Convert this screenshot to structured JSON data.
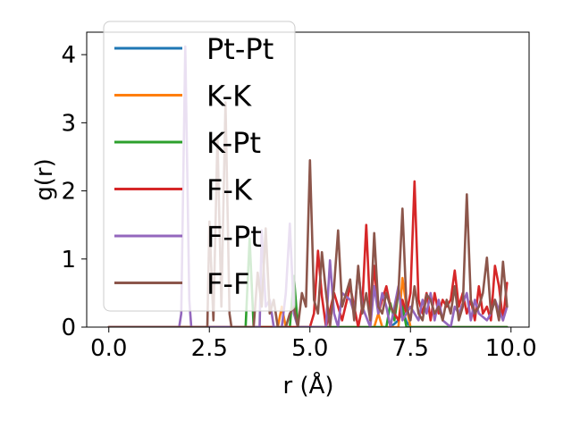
{
  "chart_data": {
    "type": "line",
    "xlabel": "r (Å)",
    "ylabel": "g(r)",
    "xlim": [
      -0.55,
      10.45
    ],
    "ylim": [
      0,
      4.33
    ],
    "xticks": [
      "0.0",
      "2.5",
      "5.0",
      "7.5",
      "10.0"
    ],
    "xtick_values": [
      0,
      2.5,
      5,
      7.5,
      10
    ],
    "yticks": [
      "0",
      "1",
      "2",
      "3",
      "4"
    ],
    "ytick_values": [
      0,
      1,
      2,
      3,
      4
    ],
    "legend_position": "upper left, overlapping plot",
    "grid": false,
    "series": [
      {
        "name": "Pt-Pt",
        "color": "#1f77b4",
        "x": [
          0,
          7.0,
          7.1,
          7.2,
          7.3,
          7.4,
          7.5,
          9.9
        ],
        "y": [
          0,
          0,
          0.05,
          0.1,
          0.25,
          0.08,
          0,
          0
        ]
      },
      {
        "name": "K-K",
        "color": "#ff7f0e",
        "x": [
          0,
          4.2,
          4.3,
          4.4,
          6.6,
          6.7,
          6.8,
          7.2,
          7.3,
          7.4,
          7.5,
          9.9
        ],
        "y": [
          0,
          0,
          0.3,
          0,
          0,
          0.2,
          0,
          0,
          0.72,
          0.3,
          0,
          0
        ]
      },
      {
        "name": "K-Pt",
        "color": "#2ca02c",
        "x": [
          0,
          3.4,
          3.5,
          3.6,
          4.5,
          4.6,
          4.7,
          6.9,
          7.0,
          7.1,
          7.2,
          7.3,
          7.4,
          7.5,
          9.9
        ],
        "y": [
          0,
          0,
          1.3,
          0,
          0,
          0.75,
          0,
          0,
          0.35,
          0.1,
          0.5,
          0.3,
          0,
          0,
          0
        ]
      },
      {
        "name": "F-K",
        "color": "#d62728",
        "x": [
          0,
          5.0,
          5.1,
          5.2,
          5.3,
          5.4,
          5.6,
          5.8,
          6.0,
          6.2,
          6.3,
          6.4,
          6.5,
          6.6,
          6.7,
          6.8,
          6.9,
          7.0,
          7.1,
          7.2,
          7.3,
          7.4,
          7.5,
          7.6,
          7.7,
          7.8,
          7.9,
          8.0,
          8.1,
          8.2,
          8.3,
          8.4,
          8.5,
          8.6,
          8.7,
          8.8,
          8.9,
          9.0,
          9.1,
          9.2,
          9.3,
          9.4,
          9.5,
          9.6,
          9.7,
          9.8,
          9.9
        ],
        "y": [
          0,
          0,
          0.2,
          1.12,
          0.45,
          0,
          0.5,
          0.1,
          0.6,
          0,
          0.3,
          1.5,
          0.2,
          0.9,
          0.2,
          0.4,
          0.6,
          0.3,
          0.2,
          0.1,
          0.4,
          0.2,
          0.5,
          2.14,
          0.4,
          0.2,
          0.5,
          0.1,
          0.5,
          0.2,
          0.4,
          0.3,
          0.4,
          0.83,
          0.3,
          0.5,
          0.2,
          0.4,
          0.1,
          0.6,
          0.2,
          0.3,
          0.1,
          0.9,
          0.6,
          0.1,
          0.65
        ]
      },
      {
        "name": "F-Pt",
        "color": "#9467bd",
        "x": [
          0,
          1.75,
          1.8,
          1.9,
          2.0,
          2.05,
          3.75,
          3.8,
          3.9,
          4.0,
          4.1,
          4.3,
          4.4,
          4.5,
          4.6,
          4.7,
          5.4,
          5.5,
          5.6,
          5.7,
          5.8,
          6.0,
          6.1,
          6.2,
          6.3,
          6.5,
          6.6,
          6.7,
          6.8,
          6.9,
          7.0,
          7.1,
          7.2,
          7.3,
          7.5,
          7.7,
          7.8,
          7.9,
          8.0,
          8.1,
          8.2,
          8.3,
          8.5,
          8.6,
          8.7,
          8.9,
          9.0,
          9.1,
          9.2,
          9.4,
          9.5,
          9.6,
          9.8,
          9.9
        ],
        "y": [
          0,
          0,
          0.2,
          4.12,
          0.4,
          0,
          0,
          1.42,
          0.3,
          0.4,
          0,
          0,
          0.5,
          1.52,
          0.2,
          0,
          0,
          0.98,
          0.2,
          0,
          0.5,
          0.4,
          0.2,
          0.85,
          0.3,
          0,
          0.6,
          0.2,
          0.5,
          0.3,
          0,
          0.3,
          0.6,
          0.1,
          0.3,
          0.1,
          0.4,
          0.2,
          0.5,
          0.1,
          0.4,
          0.1,
          0,
          0.3,
          0.2,
          0.5,
          0.1,
          0.4,
          0.2,
          0.1,
          0.2,
          0.4,
          0.1,
          0.3
        ]
      },
      {
        "name": "F-F",
        "color": "#8c564b",
        "x": [
          0,
          2.45,
          2.5,
          2.6,
          2.7,
          2.8,
          2.9,
          3.0,
          3.05,
          3.6,
          3.7,
          3.8,
          3.9,
          4.0,
          4.1,
          4.2,
          4.4,
          4.5,
          4.6,
          4.7,
          4.8,
          4.9,
          5.0,
          5.1,
          5.2,
          5.3,
          5.4,
          5.5,
          5.6,
          5.7,
          5.8,
          6.0,
          6.1,
          6.2,
          6.3,
          6.4,
          6.5,
          6.6,
          6.7,
          6.8,
          6.9,
          7.0,
          7.1,
          7.2,
          7.3,
          7.4,
          7.5,
          7.6,
          7.7,
          7.8,
          7.9,
          8.0,
          8.1,
          8.2,
          8.3,
          8.4,
          8.5,
          8.6,
          8.7,
          8.8,
          8.9,
          9.0,
          9.1,
          9.2,
          9.3,
          9.4,
          9.5,
          9.6,
          9.7,
          9.8,
          9.9
        ],
        "y": [
          0,
          0,
          1.55,
          0.1,
          2.8,
          0.3,
          3.3,
          0.2,
          0,
          0,
          0.8,
          0.3,
          1.45,
          0.2,
          0.4,
          0,
          0,
          0.2,
          0.3,
          0,
          0.5,
          0.3,
          2.45,
          0.4,
          0.2,
          1.1,
          0.5,
          0,
          0.6,
          1.42,
          0.3,
          0.7,
          0.1,
          0.9,
          0.2,
          0.5,
          0.1,
          1.38,
          0.3,
          0.2,
          0.5,
          0.3,
          0.2,
          0.5,
          1.74,
          0.3,
          0.1,
          0.6,
          0.2,
          0.1,
          0.48,
          0.4,
          0.2,
          0.3,
          0.1,
          0.4,
          0.2,
          0.6,
          0.1,
          0.3,
          1.95,
          0.4,
          0.2,
          0.3,
          0.5,
          1.02,
          0.2,
          0.4,
          0.1,
          0.96,
          0.3
        ]
      }
    ]
  }
}
